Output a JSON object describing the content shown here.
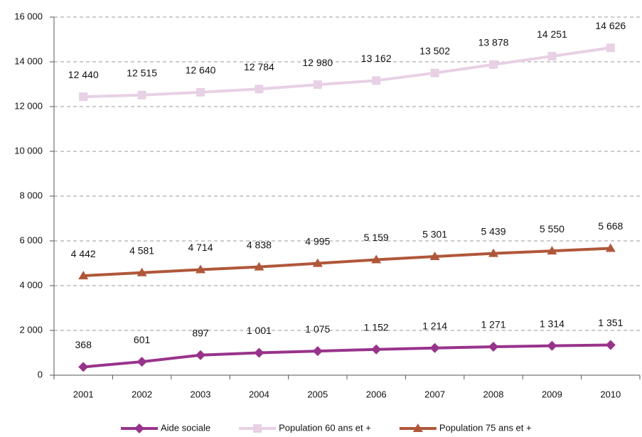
{
  "chart_data": {
    "type": "line",
    "categories": [
      "2001",
      "2002",
      "2003",
      "2004",
      "2005",
      "2006",
      "2007",
      "2008",
      "2009",
      "2010"
    ],
    "series": [
      {
        "name": "Aide sociale",
        "color": "#98338b",
        "marker": "diamond",
        "values": [
          368,
          601,
          897,
          1001,
          1075,
          1152,
          1214,
          1271,
          1314,
          1351
        ],
        "value_labels": [
          "368",
          "601",
          "897",
          "1 001",
          "1 075",
          "1 152",
          "1 214",
          "1 271",
          "1 314",
          "1 351"
        ]
      },
      {
        "name": "Population 60 ans et +",
        "color": "#e8d0e5",
        "marker": "square",
        "values": [
          12440,
          12515,
          12640,
          12784,
          12980,
          13162,
          13502,
          13878,
          14251,
          14626
        ],
        "value_labels": [
          "12 440",
          "12 515",
          "12 640",
          "12 784",
          "12 980",
          "13 162",
          "13 502",
          "13 878",
          "14 251",
          "14 626"
        ]
      },
      {
        "name": "Population 75 ans et +",
        "color": "#b0573a",
        "marker": "triangle",
        "values": [
          4442,
          4581,
          4714,
          4838,
          4995,
          5159,
          5301,
          5439,
          5550,
          5668
        ],
        "value_labels": [
          "4 442",
          "4 581",
          "4 714",
          "4 838",
          "4 995",
          "5 159",
          "5 301",
          "5 439",
          "5 550",
          "5 668"
        ]
      }
    ],
    "ylim": [
      0,
      16000
    ],
    "yticks": [
      0,
      {
        "value": 2000,
        "label": "2 000"
      },
      {
        "value": 4000,
        "label": "4 000"
      },
      {
        "value": 6000,
        "label": "6 000"
      },
      {
        "value": 8000,
        "label": "8 000"
      },
      {
        "value": 10000,
        "label": "10 000"
      },
      {
        "value": 12000,
        "label": "12 000"
      },
      {
        "value": 14000,
        "label": "14 000"
      },
      {
        "value": 16000,
        "label": "16 000"
      }
    ],
    "grid": true,
    "legend": "bottom"
  }
}
